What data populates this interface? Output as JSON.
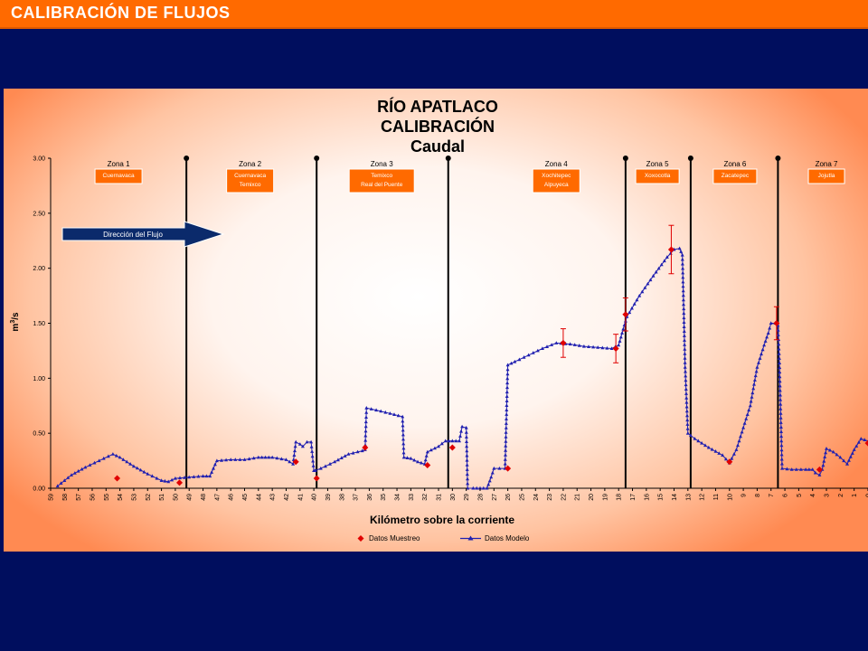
{
  "slide": {
    "title": "CALIBRACIÓN DE FLUJOS"
  },
  "chart_data": {
    "type": "line",
    "title": [
      "RÍO APATLACO",
      "CALIBRACIÓN",
      "Caudal"
    ],
    "xlabel": "Kilómetro sobre la corriente",
    "ylabel": "m³/s",
    "ylabel_base": "m",
    "ylabel_sup": "3",
    "ylabel_rest": "/s",
    "xlim": [
      59,
      0
    ],
    "x_reversed": true,
    "ylim": [
      0,
      3
    ],
    "yticks": [
      "0.00",
      "0.50",
      "1.00",
      "1.50",
      "2.00",
      "2.50",
      "3.00"
    ],
    "xticks": [
      "59",
      "58",
      "57",
      "56",
      "55",
      "54",
      "53",
      "52",
      "51",
      "50",
      "49",
      "48",
      "47",
      "46",
      "45",
      "44",
      "43",
      "42",
      "41",
      "40",
      "39",
      "38",
      "37",
      "36",
      "35",
      "34",
      "33",
      "32",
      "31",
      "30",
      "29",
      "28",
      "27",
      "26",
      "25",
      "24",
      "23",
      "22",
      "21",
      "20",
      "19",
      "18",
      "17",
      "16",
      "15",
      "14",
      "13",
      "12",
      "11",
      "10",
      "9",
      "8",
      "7",
      "6",
      "5",
      "4",
      "3",
      "2",
      "1",
      "0"
    ],
    "legend_position": "bottom",
    "arrow_label": "Dirección del Flujo",
    "zone_boundaries_km": [
      49.2,
      39.8,
      30.3,
      17.5,
      12.8,
      6.5
    ],
    "zones": [
      {
        "name": "Zona 1",
        "box": [
          "Cuernavaca"
        ],
        "km": 54.1
      },
      {
        "name": "Zona 2",
        "box": [
          "Cuernavaca",
          "Temixco"
        ],
        "km": 44.6
      },
      {
        "name": "Zona 3",
        "box": [
          "Temixco",
          "Real del Puente"
        ],
        "km": 35.1
      },
      {
        "name": "Zona 4",
        "box": [
          "Xochitepec",
          "Alpuyeca"
        ],
        "km": 22.5
      },
      {
        "name": "Zona 5",
        "box": [
          "Xoxocotla"
        ],
        "km": 15.2
      },
      {
        "name": "Zona 6",
        "box": [
          "Zacatepec"
        ],
        "km": 9.6
      },
      {
        "name": "Zona 7",
        "box": [
          "Jojutla"
        ],
        "km": 3.0
      }
    ],
    "series": [
      {
        "name": "Datos Modelo",
        "color": "#2020B0",
        "marker": "triangle",
        "x": [
          58.5,
          57.5,
          56.5,
          55.5,
          54.5,
          54.0,
          53.0,
          52.0,
          51.0,
          50.5,
          50.0,
          49.0,
          48.0,
          47.5,
          47.0,
          46.0,
          45.0,
          44.0,
          43.5,
          43.0,
          42.0,
          41.5,
          41.3,
          41.0,
          40.8,
          40.5,
          40.2,
          40.0,
          39.9,
          39.5,
          38.5,
          37.5,
          36.5,
          36.3,
          36.2,
          35.5,
          34.5,
          33.6,
          33.5,
          33.0,
          32.5,
          32.0,
          31.8,
          31.0,
          30.5,
          30.0,
          29.5,
          29.3,
          29.0,
          28.9,
          28.5,
          28.0,
          27.5,
          27.2,
          27.0,
          26.2,
          26.0,
          25.5,
          24.5,
          23.5,
          22.5,
          21.5,
          20.5,
          19.5,
          18.5,
          18.0,
          17.5,
          17.4,
          16.5,
          15.5,
          14.5,
          14.0,
          13.6,
          13.4,
          13.2,
          13.0,
          12.8,
          12.5,
          11.5,
          10.5,
          10.0,
          9.5,
          9.0,
          8.5,
          8.0,
          7.5,
          7.2,
          7.0,
          6.7,
          6.5,
          6.4,
          6.2,
          5.5,
          4.5,
          4.0,
          3.8,
          3.5,
          3.3,
          3.0,
          2.5,
          2.0,
          1.5,
          1.0,
          0.5,
          0.0
        ],
        "y": [
          0.02,
          0.12,
          0.19,
          0.25,
          0.31,
          0.28,
          0.2,
          0.13,
          0.07,
          0.06,
          0.09,
          0.1,
          0.11,
          0.11,
          0.25,
          0.26,
          0.26,
          0.28,
          0.28,
          0.28,
          0.26,
          0.22,
          0.42,
          0.4,
          0.38,
          0.42,
          0.42,
          0.16,
          0.16,
          0.18,
          0.24,
          0.31,
          0.34,
          0.35,
          0.73,
          0.71,
          0.68,
          0.65,
          0.28,
          0.27,
          0.24,
          0.22,
          0.33,
          0.38,
          0.43,
          0.43,
          0.43,
          0.56,
          0.55,
          0.0,
          0.0,
          0.0,
          0.0,
          0.1,
          0.18,
          0.18,
          1.12,
          1.15,
          1.21,
          1.27,
          1.32,
          1.31,
          1.29,
          1.28,
          1.27,
          1.3,
          1.52,
          1.56,
          1.75,
          1.93,
          2.1,
          2.17,
          2.18,
          2.12,
          1.1,
          0.5,
          0.48,
          0.45,
          0.37,
          0.3,
          0.23,
          0.35,
          0.55,
          0.75,
          1.1,
          1.3,
          1.41,
          1.5,
          1.5,
          1.48,
          1.18,
          0.18,
          0.17,
          0.17,
          0.17,
          0.14,
          0.12,
          0.17,
          0.36,
          0.33,
          0.28,
          0.22,
          0.35,
          0.45,
          0.43
        ]
      },
      {
        "name": "Datos Muestreo",
        "color": "#E00000",
        "marker": "diamond",
        "x": [
          54.2,
          49.7,
          41.3,
          39.8,
          36.3,
          31.8,
          30.0,
          26.0,
          22.0,
          18.2,
          17.5,
          14.2,
          10.0,
          6.6,
          3.5,
          0.0
        ],
        "y": [
          0.09,
          0.05,
          0.24,
          0.09,
          0.37,
          0.21,
          0.37,
          0.18,
          1.32,
          1.27,
          1.58,
          2.17,
          0.24,
          1.5,
          0.17,
          0.41
        ],
        "error": [
          null,
          null,
          null,
          null,
          null,
          null,
          null,
          null,
          0.13,
          0.13,
          0.15,
          0.22,
          null,
          0.15,
          null,
          null
        ]
      }
    ]
  }
}
